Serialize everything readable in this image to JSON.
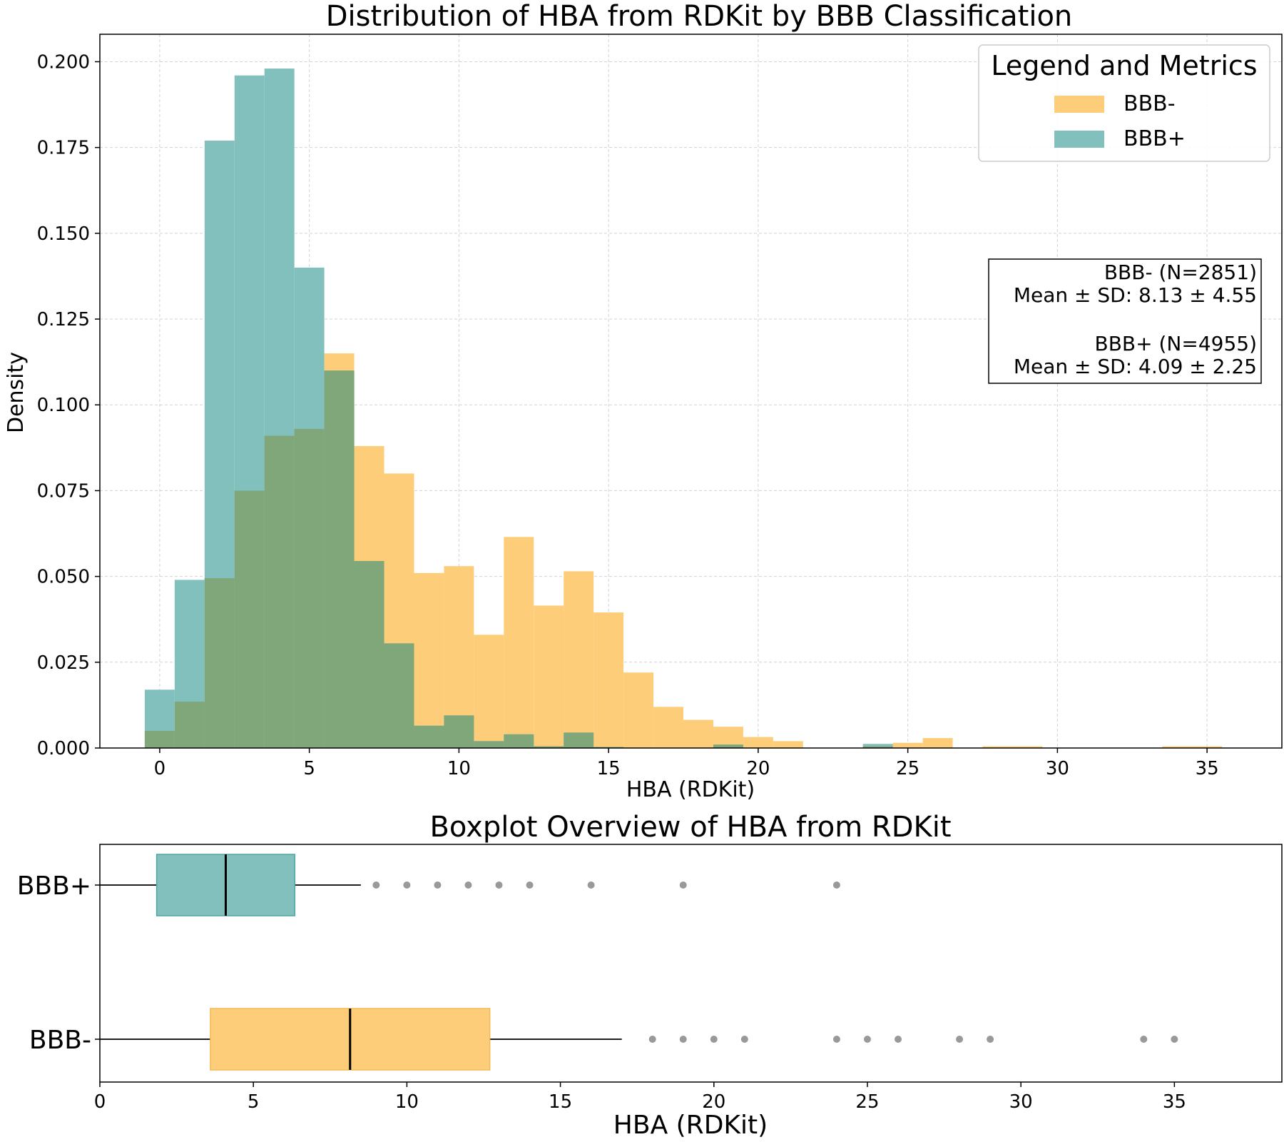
{
  "chart_data": [
    {
      "type": "histogram",
      "title": "Distribution of HBA from RDKit by BBB Classification",
      "xlabel": "HBA (RDKit)",
      "ylabel": "Density",
      "xlim": [
        -2,
        37.5
      ],
      "ylim": [
        0,
        0.208
      ],
      "xticks": [
        0,
        5,
        10,
        15,
        20,
        25,
        30,
        35
      ],
      "yticks": [
        "0.000",
        "0.025",
        "0.050",
        "0.075",
        "0.100",
        "0.125",
        "0.150",
        "0.175",
        "0.200"
      ],
      "grid": true,
      "bin_width": 1,
      "legend": {
        "title": "Legend and Metrics",
        "position": "top-right",
        "entries": [
          "BBB-",
          "BBB+"
        ]
      },
      "metrics_lines": [
        "BBB- (N=2851)",
        "Mean ± SD: 8.13 ± 4.55",
        "",
        "BBB+ (N=4955)",
        "Mean ± SD: 4.09 ± 2.25"
      ],
      "overlap_color": "#7fa77a",
      "series": [
        {
          "name": "BBB-",
          "color": "#fecd79",
          "bins": [
            {
              "x": 0,
              "density": 0.005
            },
            {
              "x": 1,
              "density": 0.0135
            },
            {
              "x": 2,
              "density": 0.0495
            },
            {
              "x": 3,
              "density": 0.075
            },
            {
              "x": 4,
              "density": 0.091
            },
            {
              "x": 5,
              "density": 0.093
            },
            {
              "x": 6,
              "density": 0.115
            },
            {
              "x": 7,
              "density": 0.088
            },
            {
              "x": 8,
              "density": 0.08
            },
            {
              "x": 9,
              "density": 0.051
            },
            {
              "x": 10,
              "density": 0.053
            },
            {
              "x": 11,
              "density": 0.033
            },
            {
              "x": 12,
              "density": 0.0615
            },
            {
              "x": 13,
              "density": 0.0415
            },
            {
              "x": 14,
              "density": 0.0515
            },
            {
              "x": 15,
              "density": 0.0395
            },
            {
              "x": 16,
              "density": 0.022
            },
            {
              "x": 17,
              "density": 0.012
            },
            {
              "x": 18,
              "density": 0.0082
            },
            {
              "x": 19,
              "density": 0.0062
            },
            {
              "x": 20,
              "density": 0.0032
            },
            {
              "x": 21,
              "density": 0.002
            },
            {
              "x": 22,
              "density": 0
            },
            {
              "x": 23,
              "density": 0
            },
            {
              "x": 24,
              "density": 0.0005
            },
            {
              "x": 25,
              "density": 0.0015
            },
            {
              "x": 26,
              "density": 0.0029
            },
            {
              "x": 27,
              "density": 0
            },
            {
              "x": 28,
              "density": 0.0005
            },
            {
              "x": 29,
              "density": 0.0005
            },
            {
              "x": 30,
              "density": 0
            },
            {
              "x": 31,
              "density": 0
            },
            {
              "x": 32,
              "density": 0
            },
            {
              "x": 33,
              "density": 0
            },
            {
              "x": 34,
              "density": 0.0005
            },
            {
              "x": 35,
              "density": 0.0005
            }
          ]
        },
        {
          "name": "BBB+",
          "color": "#82c0be",
          "bins": [
            {
              "x": 0,
              "density": 0.017
            },
            {
              "x": 1,
              "density": 0.049
            },
            {
              "x": 2,
              "density": 0.177
            },
            {
              "x": 3,
              "density": 0.196
            },
            {
              "x": 4,
              "density": 0.198
            },
            {
              "x": 5,
              "density": 0.14
            },
            {
              "x": 6,
              "density": 0.11
            },
            {
              "x": 7,
              "density": 0.0545
            },
            {
              "x": 8,
              "density": 0.0305
            },
            {
              "x": 9,
              "density": 0.0065
            },
            {
              "x": 10,
              "density": 0.0095
            },
            {
              "x": 11,
              "density": 0.002
            },
            {
              "x": 12,
              "density": 0.004
            },
            {
              "x": 13,
              "density": 0.0005
            },
            {
              "x": 14,
              "density": 0.0045
            },
            {
              "x": 15,
              "density": 0.0003
            },
            {
              "x": 16,
              "density": 0
            },
            {
              "x": 17,
              "density": 0
            },
            {
              "x": 18,
              "density": 0
            },
            {
              "x": 19,
              "density": 0.001
            },
            {
              "x": 20,
              "density": 0
            },
            {
              "x": 21,
              "density": 0
            },
            {
              "x": 22,
              "density": 0
            },
            {
              "x": 23,
              "density": 0
            },
            {
              "x": 24,
              "density": 0.0012
            },
            {
              "x": 25,
              "density": 0
            }
          ]
        }
      ]
    },
    {
      "type": "boxplot",
      "title": "Boxplot Overview of HBA from RDKit",
      "xlabel": "HBA (RDKit)",
      "xlim": [
        0,
        38.5
      ],
      "xticks": [
        0,
        5,
        10,
        15,
        20,
        25,
        30,
        35
      ],
      "categories": [
        "BBB+",
        "BBB-"
      ],
      "series": [
        {
          "name": "BBB+",
          "color": "#82c0be",
          "edge": "#4fa5a1",
          "whisker_low": 0,
          "q1": 1.85,
          "median": 4.1,
          "q3": 6.35,
          "whisker_high": 8.5,
          "outliers": [
            9,
            10,
            11,
            12,
            13,
            14,
            16,
            19,
            24
          ]
        },
        {
          "name": "BBB-",
          "color": "#fecd79",
          "edge": "#f7b94d",
          "whisker_low": 0,
          "q1": 3.6,
          "median": 8.15,
          "q3": 12.7,
          "whisker_high": 17,
          "outliers": [
            18,
            19,
            20,
            21,
            24,
            25,
            26,
            28,
            29,
            34,
            35
          ]
        }
      ]
    }
  ]
}
